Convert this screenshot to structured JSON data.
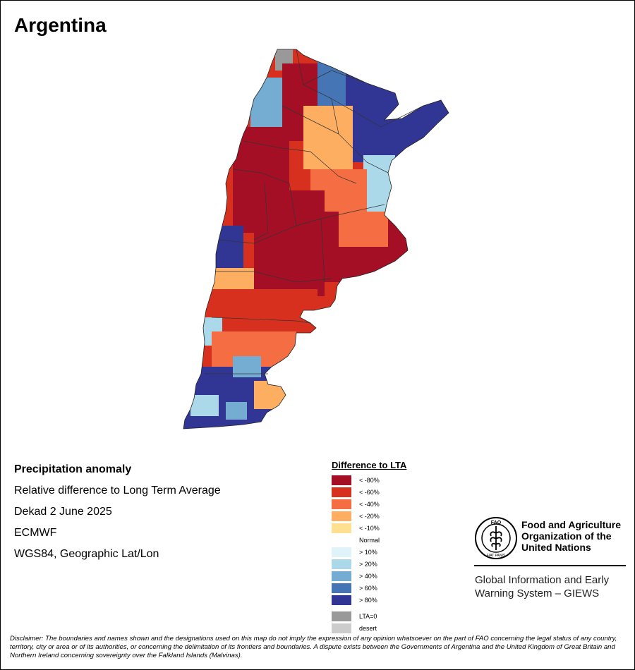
{
  "map": {
    "title": "Argentina"
  },
  "info": {
    "heading": "Precipitation anomaly",
    "subtitle": "Relative difference to Long Term Average",
    "period": "Dekad 2 June 2025",
    "source": "ECMWF",
    "projection": "WGS84, Geographic Lat/Lon"
  },
  "legend": {
    "title": "Difference to LTA",
    "items": [
      {
        "label": "< -80%",
        "color": "#a50f26"
      },
      {
        "label": "< -60%",
        "color": "#d7301f"
      },
      {
        "label": "< -40%",
        "color": "#f46d43"
      },
      {
        "label": "< -20%",
        "color": "#fdae61"
      },
      {
        "label": "< -10%",
        "color": "#fee090"
      },
      {
        "label": "Normal",
        "color": "#ffffff"
      },
      {
        "label": "> 10%",
        "color": "#e0f3f8"
      },
      {
        "label": "> 20%",
        "color": "#abd9e9"
      },
      {
        "label": "> 40%",
        "color": "#74add1"
      },
      {
        "label": "> 60%",
        "color": "#4575b4"
      },
      {
        "label": "> 80%",
        "color": "#313695"
      }
    ],
    "extra": [
      {
        "label": "LTA=0",
        "color": "#999999"
      },
      {
        "label": "desert",
        "color": "#cccccc"
      }
    ]
  },
  "organization": {
    "logo_text": "FAO",
    "logo_ring_text": "FIAT PANIS",
    "name_line1": "Food and Agriculture",
    "name_line2": "Organization of the",
    "name_line3": "United Nations",
    "giews_line1": "Global Information and Early",
    "giews_line2": "Warning System – GIEWS"
  },
  "disclaimer": "Disclaimer: The boundaries and names shown and the designations used on this map do not imply the expression of any opinion whatsoever on the part of FAO concerning the legal status of any country, territory, city or area or of its authorities, or concerning the delimitation of its frontiers and boundaries. A dispute exists between the Governments of Argentina and the United Kingdom of Great Britain and Northern Ireland concerning sovereignty over the Falkland Islands (Malvinas)."
}
